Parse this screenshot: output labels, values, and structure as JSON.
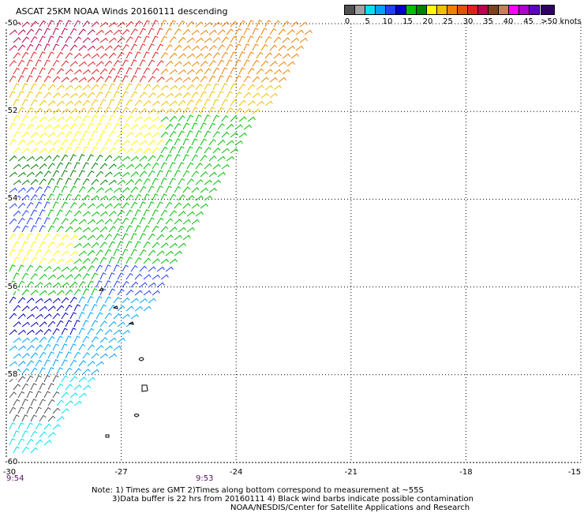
{
  "title": "ASCAT 25KM NOAA Winds 20160111 descending",
  "legend": {
    "colors": [
      "#505050",
      "#a0a0a0",
      "#00e0f0",
      "#00a0ff",
      "#2040ff",
      "#0000c0",
      "#00c000",
      "#008000",
      "#ffff00",
      "#f0c000",
      "#f08000",
      "#e05010",
      "#e02020",
      "#c00050",
      "#804020",
      "#c08060",
      "#ff00ff",
      "#b000d0",
      "#6000c0",
      "#300060"
    ],
    "labels": [
      "0",
      "5",
      "10",
      "15",
      "20",
      "25",
      "30",
      "35",
      "40",
      "45",
      ">50 knots"
    ]
  },
  "axes": {
    "lat_labels": [
      "-50",
      "-52",
      "-54",
      "-56",
      "-58",
      "-60"
    ],
    "lon_labels": [
      "-30",
      "-27",
      "-24",
      "-21",
      "-18",
      "-15"
    ],
    "lat_range": [
      -60,
      -50
    ],
    "lon_range": [
      -30,
      -15
    ],
    "grid": true
  },
  "times": [
    "9:54",
    "9:53"
  ],
  "notes": [
    "Note: 1) Times are GMT 2)Times along bottom correspond to measurement at ~55S",
    "3)Data buffer is 22 hrs from 20160111 4) Black wind barbs indicate possible contamination",
    "NOAA/NESDIS/Center for Satellite Applications and Research"
  ]
}
